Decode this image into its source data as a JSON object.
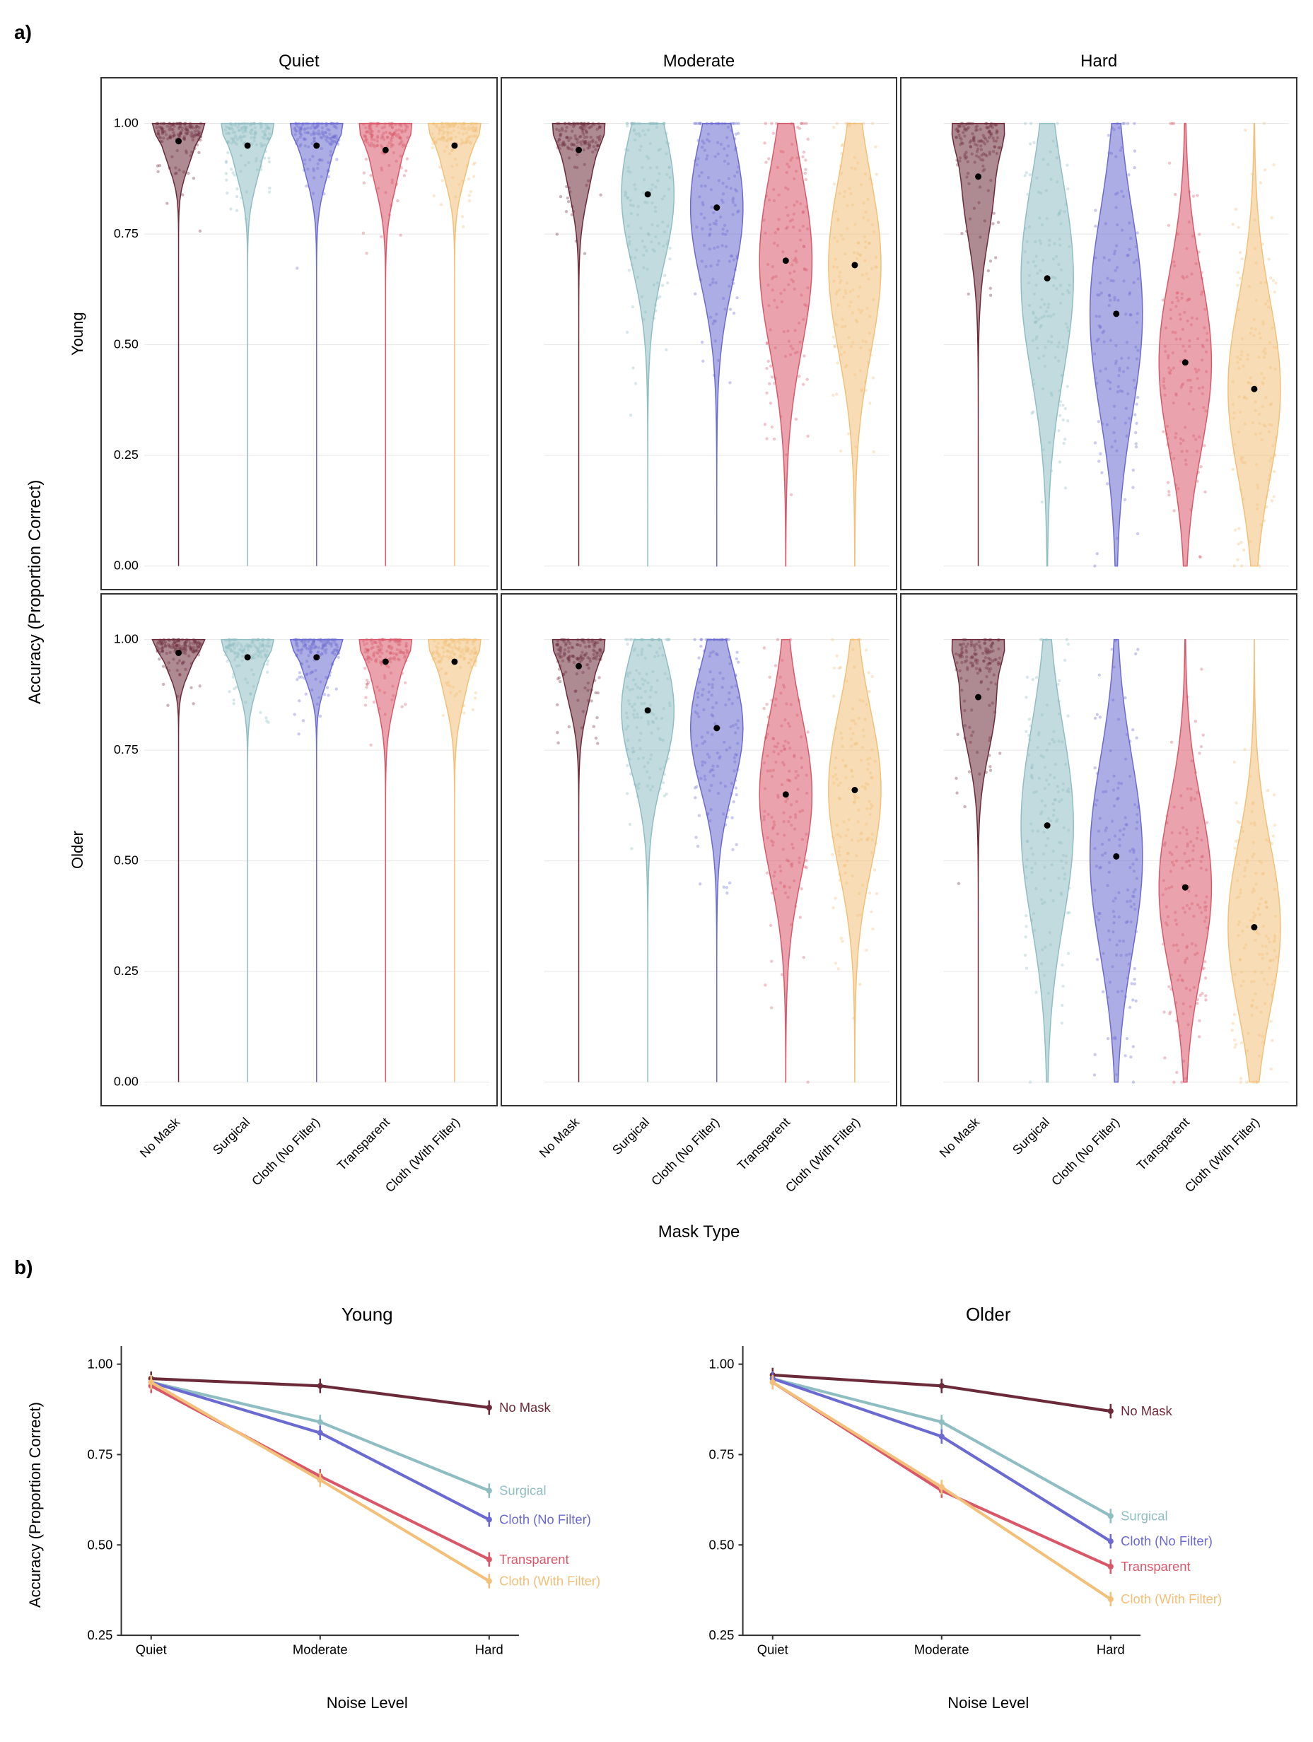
{
  "panelA": {
    "label": "a)",
    "y_axis_label": "Accuracy (Proportion Correct)",
    "x_axis_label": "Mask Type",
    "col_headers": [
      "Quiet",
      "Moderate",
      "Hard"
    ],
    "row_headers": [
      "Young",
      "Older"
    ],
    "mask_types": [
      "No Mask",
      "Surgical",
      "Cloth (No Filter)",
      "Transparent",
      "Cloth (With Filter)"
    ],
    "colors": {
      "No Mask": "#6b2a3a",
      "Surgical": "#8fbec2",
      "Cloth (No Filter)": "#6a6ad0",
      "Transparent": "#d8586a",
      "Cloth (With Filter)": "#f2c078"
    },
    "y_ticks": [
      0.0,
      0.25,
      0.5,
      0.75,
      1.0
    ],
    "ylim": [
      0,
      1.05
    ],
    "means": {
      "Young": {
        "Quiet": {
          "No Mask": 0.96,
          "Surgical": 0.95,
          "Cloth (No Filter)": 0.95,
          "Transparent": 0.94,
          "Cloth (With Filter)": 0.95
        },
        "Moderate": {
          "No Mask": 0.94,
          "Surgical": 0.84,
          "Cloth (No Filter)": 0.81,
          "Transparent": 0.69,
          "Cloth (With Filter)": 0.68
        },
        "Hard": {
          "No Mask": 0.88,
          "Surgical": 0.65,
          "Cloth (No Filter)": 0.57,
          "Transparent": 0.46,
          "Cloth (With Filter)": 0.4
        }
      },
      "Older": {
        "Quiet": {
          "No Mask": 0.97,
          "Surgical": 0.96,
          "Cloth (No Filter)": 0.96,
          "Transparent": 0.95,
          "Cloth (With Filter)": 0.95
        },
        "Moderate": {
          "No Mask": 0.94,
          "Surgical": 0.84,
          "Cloth (No Filter)": 0.8,
          "Transparent": 0.65,
          "Cloth (With Filter)": 0.66
        },
        "Hard": {
          "No Mask": 0.87,
          "Surgical": 0.58,
          "Cloth (No Filter)": 0.51,
          "Transparent": 0.44,
          "Cloth (With Filter)": 0.35
        }
      }
    },
    "spread": {
      "Young": {
        "Quiet": {
          "No Mask": 0.06,
          "Surgical": 0.08,
          "Cloth (No Filter)": 0.08,
          "Transparent": 0.09,
          "Cloth (With Filter)": 0.08
        },
        "Moderate": {
          "No Mask": 0.1,
          "Surgical": 0.16,
          "Cloth (No Filter)": 0.17,
          "Transparent": 0.2,
          "Cloth (With Filter)": 0.2
        },
        "Hard": {
          "No Mask": 0.14,
          "Surgical": 0.22,
          "Cloth (No Filter)": 0.23,
          "Transparent": 0.2,
          "Cloth (With Filter)": 0.2
        }
      },
      "Older": {
        "Quiet": {
          "No Mask": 0.05,
          "Surgical": 0.07,
          "Cloth (No Filter)": 0.06,
          "Transparent": 0.09,
          "Cloth (With Filter)": 0.09
        },
        "Moderate": {
          "No Mask": 0.09,
          "Surgical": 0.14,
          "Cloth (No Filter)": 0.14,
          "Transparent": 0.18,
          "Cloth (With Filter)": 0.18
        },
        "Hard": {
          "No Mask": 0.12,
          "Surgical": 0.22,
          "Cloth (No Filter)": 0.22,
          "Transparent": 0.19,
          "Cloth (With Filter)": 0.19
        }
      }
    },
    "grid_color": "#e6e6e6",
    "axis_color": "#333333",
    "point_count": 140,
    "violin_alpha": 0.55,
    "jitter_alpha": 0.35
  },
  "panelB": {
    "label": "b)",
    "y_axis_label": "Accuracy (Proportion Correct)",
    "x_axis_label": "Noise Level",
    "col_headers": [
      "Young",
      "Older"
    ],
    "x_categories": [
      "Quiet",
      "Moderate",
      "Hard"
    ],
    "y_ticks": [
      0.25,
      0.5,
      0.75,
      1.0
    ],
    "ylim": [
      0.25,
      1.05
    ],
    "series_order": [
      "No Mask",
      "Surgical",
      "Cloth (No Filter)",
      "Transparent",
      "Cloth (With Filter)"
    ],
    "data": {
      "Young": {
        "No Mask": [
          0.96,
          0.94,
          0.88
        ],
        "Surgical": [
          0.95,
          0.84,
          0.65
        ],
        "Cloth (No Filter)": [
          0.95,
          0.81,
          0.57
        ],
        "Transparent": [
          0.94,
          0.69,
          0.46
        ],
        "Cloth (With Filter)": [
          0.95,
          0.68,
          0.4
        ]
      },
      "Older": {
        "No Mask": [
          0.97,
          0.94,
          0.87
        ],
        "Surgical": [
          0.96,
          0.84,
          0.58
        ],
        "Cloth (No Filter)": [
          0.96,
          0.8,
          0.51
        ],
        "Transparent": [
          0.95,
          0.65,
          0.44
        ],
        "Cloth (With Filter)": [
          0.95,
          0.66,
          0.35
        ]
      }
    },
    "error": 0.02,
    "line_width": 4,
    "axis_color": "#333333",
    "label_fontsize": 18
  }
}
